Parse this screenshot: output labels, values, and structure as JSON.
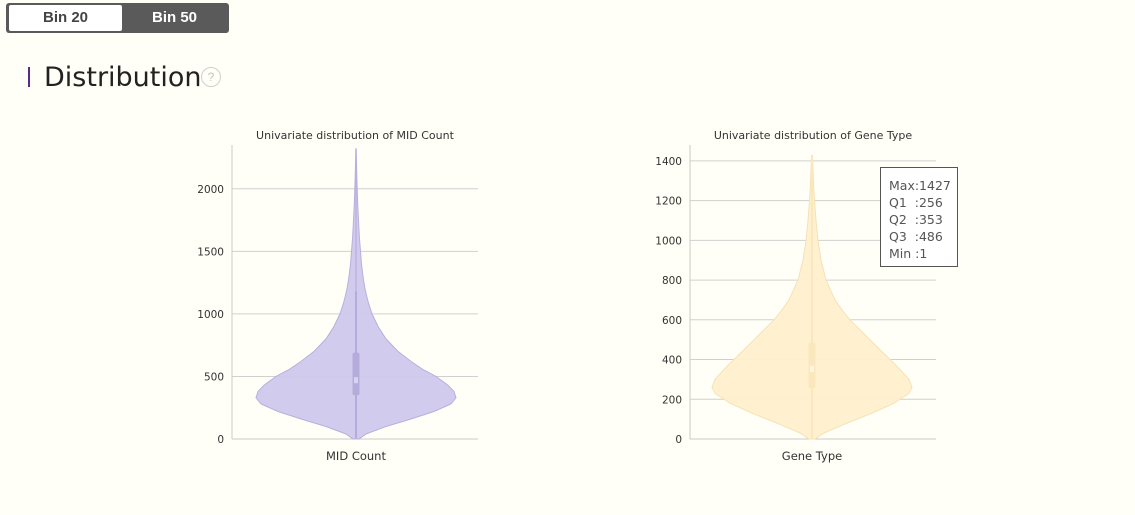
{
  "toggle": {
    "options": [
      "Bin 20",
      "Bin 50"
    ],
    "selected": "Bin 50"
  },
  "section": {
    "title": "Distribution",
    "help_icon_glyph": "?",
    "accent_color": "#5b2a86"
  },
  "chart_data": [
    {
      "type": "violin",
      "title": "Univariate distribution of MID Count",
      "xlabel": "MID Count",
      "ylabel": "",
      "categories": [
        "MID Count"
      ],
      "ylim": [
        0,
        2350
      ],
      "y_ticks": [
        0,
        500,
        1000,
        1500,
        2000
      ],
      "color": "#cfc8ec",
      "stats": {
        "max": 2320,
        "q1": 350,
        "median": 470,
        "q3": 690,
        "whisker_high": 1180,
        "min": 5
      },
      "density": [
        [
          0,
          0.03
        ],
        [
          40,
          0.1
        ],
        [
          100,
          0.3
        ],
        [
          160,
          0.55
        ],
        [
          220,
          0.78
        ],
        [
          280,
          0.95
        ],
        [
          330,
          1.0
        ],
        [
          380,
          0.98
        ],
        [
          430,
          0.92
        ],
        [
          500,
          0.8
        ],
        [
          560,
          0.66
        ],
        [
          620,
          0.55
        ],
        [
          700,
          0.42
        ],
        [
          800,
          0.3
        ],
        [
          900,
          0.22
        ],
        [
          1000,
          0.16
        ],
        [
          1100,
          0.12
        ],
        [
          1200,
          0.09
        ],
        [
          1300,
          0.07
        ],
        [
          1400,
          0.055
        ],
        [
          1500,
          0.045
        ],
        [
          1600,
          0.035
        ],
        [
          1700,
          0.028
        ],
        [
          1800,
          0.022
        ],
        [
          1900,
          0.016
        ],
        [
          2000,
          0.012
        ],
        [
          2100,
          0.008
        ],
        [
          2200,
          0.005
        ],
        [
          2320,
          0.002
        ]
      ],
      "grid": true
    },
    {
      "type": "violin",
      "title": "Univariate distribution of Gene Type",
      "xlabel": "Gene Type",
      "ylabel": "",
      "categories": [
        "Gene Type"
      ],
      "ylim": [
        0,
        1480
      ],
      "y_ticks": [
        0,
        200,
        400,
        600,
        800,
        1000,
        1200,
        1400
      ],
      "color": "#fff0cc",
      "stats": {
        "max": 1427,
        "q1": 256,
        "median": 353,
        "q3": 486,
        "min": 1
      },
      "tooltip": [
        "Max:1427",
        "Q1  :256",
        "Q2  :353",
        "Q3  :486",
        "Min :1"
      ],
      "density": [
        [
          0,
          0.03
        ],
        [
          30,
          0.12
        ],
        [
          80,
          0.35
        ],
        [
          130,
          0.6
        ],
        [
          180,
          0.82
        ],
        [
          230,
          0.97
        ],
        [
          260,
          1.0
        ],
        [
          300,
          0.97
        ],
        [
          350,
          0.88
        ],
        [
          400,
          0.78
        ],
        [
          450,
          0.68
        ],
        [
          500,
          0.58
        ],
        [
          550,
          0.48
        ],
        [
          600,
          0.38
        ],
        [
          650,
          0.3
        ],
        [
          700,
          0.23
        ],
        [
          800,
          0.14
        ],
        [
          900,
          0.09
        ],
        [
          1000,
          0.06
        ],
        [
          1100,
          0.04
        ],
        [
          1200,
          0.025
        ],
        [
          1300,
          0.014
        ],
        [
          1427,
          0.005
        ]
      ],
      "grid": true
    }
  ]
}
